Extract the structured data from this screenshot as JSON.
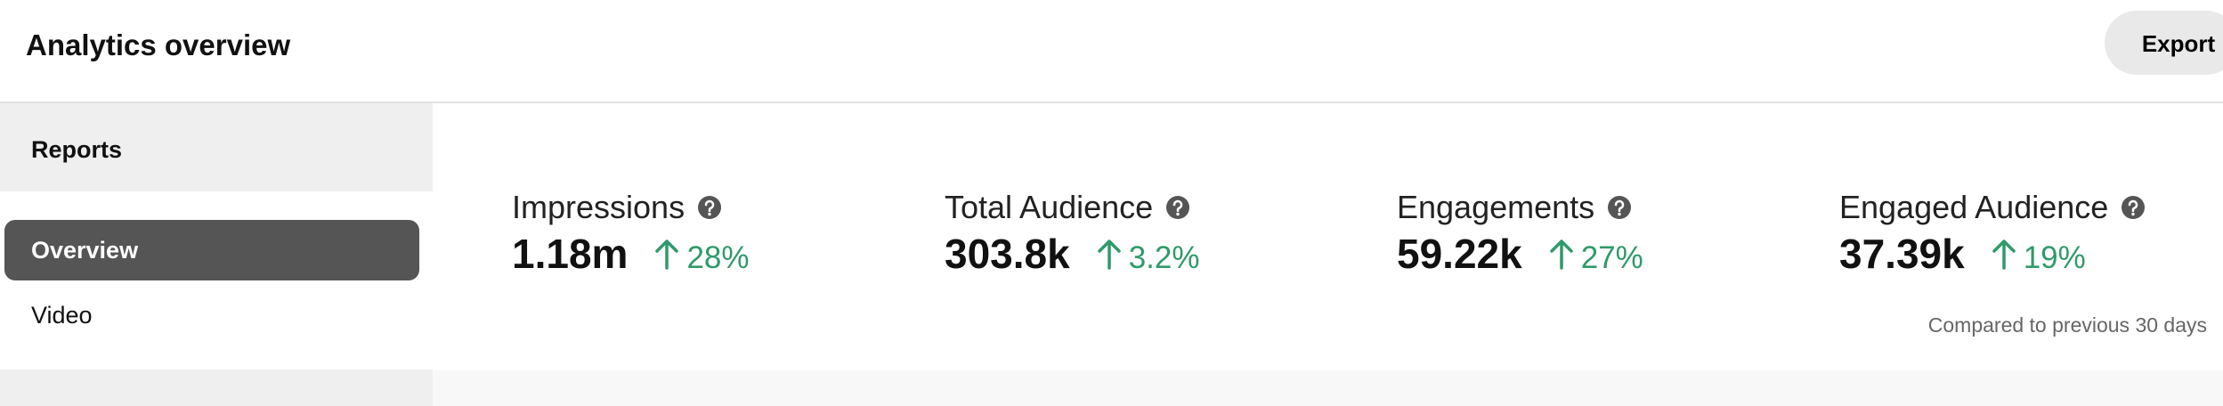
{
  "header": {
    "title": "Analytics overview",
    "button": "Export"
  },
  "sidebar": {
    "section": "Reports",
    "items": [
      "Overview",
      "Video"
    ]
  },
  "metrics": [
    {
      "label": "Impressions",
      "value": "1.18m",
      "change": "28%"
    },
    {
      "label": "Total Audience",
      "value": "303.8k",
      "change": "3.2%"
    },
    {
      "label": "Engagements",
      "value": "59.22k",
      "change": "27%"
    },
    {
      "label": "Engaged Audience",
      "value": "37.39k",
      "change": "19%"
    }
  ],
  "note": "Compared to previous 30 days"
}
